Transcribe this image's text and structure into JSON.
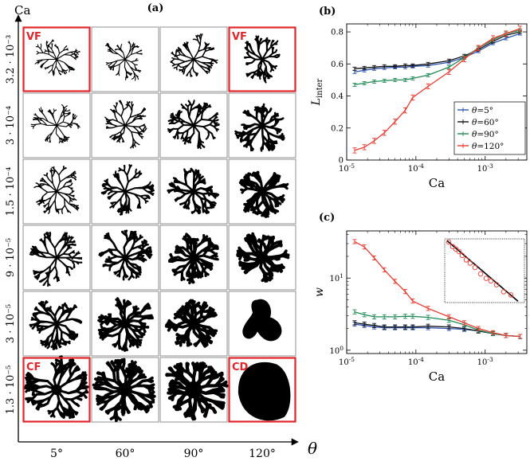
{
  "panel_labels": {
    "a": "(a)",
    "b": "(b)",
    "c": "(c)"
  },
  "grid": {
    "y_axis_label": "Ca",
    "x_axis_label": "θ",
    "rows": [
      "3.2 · 10⁻³",
      "3 · 10⁻⁴",
      "1.5 · 10⁻⁴",
      "9 · 10⁻⁵",
      "3 · 10⁻⁵",
      "1.3 · 10⁻⁵"
    ],
    "cols": [
      "5°",
      "60°",
      "90°",
      "120°"
    ],
    "highlights": [
      {
        "label": "VF",
        "row": 0,
        "col": 0
      },
      {
        "label": "VF",
        "row": 0,
        "col": 3
      },
      {
        "label": "CF",
        "row": 5,
        "col": 0
      },
      {
        "label": "CD",
        "row": 5,
        "col": 3
      }
    ],
    "pattern_color": "#000000",
    "highlight_color": "#e0262b"
  },
  "chart_data": [
    {
      "type": "line",
      "panel": "(b)",
      "xlabel": "Ca",
      "ylabel": "L",
      "ylabel_sub": "inter",
      "xscale": "log",
      "xlim": [
        1e-05,
        0.004
      ],
      "ylim": [
        0,
        0.85
      ],
      "xticks": [
        {
          "v": 1e-05,
          "base": "10",
          "exp": "-5"
        },
        {
          "v": 0.0001,
          "base": "10",
          "exp": "-4"
        },
        {
          "v": 0.001,
          "base": "10",
          "exp": "-3"
        }
      ],
      "yticks": [
        {
          "v": 0,
          "label": "0"
        },
        {
          "v": 0.2,
          "label": "0.2"
        },
        {
          "v": 0.4,
          "label": "0.4"
        },
        {
          "v": 0.6,
          "label": "0.6"
        },
        {
          "v": 0.8,
          "label": "0.8"
        }
      ],
      "legend_position": "inside-right",
      "x": [
        1.3e-05,
        1.8e-05,
        2.5e-05,
        3.5e-05,
        5e-05,
        7e-05,
        9e-05,
        0.00015,
        0.0003,
        0.0005,
        0.0008,
        0.0013,
        0.002,
        0.0032
      ],
      "series": [
        {
          "name": "θ=5°",
          "color": "#2d56b5",
          "values": [
            0.55,
            0.56,
            0.57,
            0.575,
            0.58,
            0.58,
            0.585,
            0.59,
            0.61,
            0.64,
            0.68,
            0.73,
            0.76,
            0.79
          ]
        },
        {
          "name": "θ=60°",
          "color": "#111111",
          "values": [
            0.57,
            0.575,
            0.58,
            0.585,
            0.585,
            0.59,
            0.59,
            0.6,
            0.62,
            0.65,
            0.69,
            0.74,
            0.78,
            0.8
          ]
        },
        {
          "name": "θ=90°",
          "color": "#1f8a55",
          "values": [
            0.47,
            0.48,
            0.49,
            0.495,
            0.5,
            0.5,
            0.51,
            0.53,
            0.58,
            0.64,
            0.7,
            0.75,
            0.79,
            0.81
          ]
        },
        {
          "name": "θ=120°",
          "color": "#ec3b2f",
          "values": [
            0.06,
            0.08,
            0.12,
            0.17,
            0.24,
            0.31,
            0.39,
            0.46,
            0.55,
            0.63,
            0.7,
            0.76,
            0.79,
            0.82
          ]
        }
      ]
    },
    {
      "type": "line",
      "panel": "(c)",
      "xlabel": "Ca",
      "ylabel": "w",
      "xscale": "log",
      "yscale": "log",
      "xlim": [
        1e-05,
        0.004
      ],
      "ylim": [
        0.9,
        45
      ],
      "xticks": [
        {
          "v": 1e-05,
          "base": "10",
          "exp": "-5"
        },
        {
          "v": 0.0001,
          "base": "10",
          "exp": "-4"
        },
        {
          "v": 0.001,
          "base": "10",
          "exp": "-3"
        }
      ],
      "yticks": [
        {
          "v": 1,
          "base": "10",
          "exp": "0"
        },
        {
          "v": 10,
          "base": "10",
          "exp": "1"
        }
      ],
      "x": [
        1.3e-05,
        1.8e-05,
        2.5e-05,
        3.5e-05,
        5e-05,
        7e-05,
        9e-05,
        0.00015,
        0.0003,
        0.0005,
        0.0008,
        0.0013,
        0.002,
        0.0032
      ],
      "series": [
        {
          "name": "θ=5°",
          "color": "#2d56b5",
          "values": [
            2.3,
            2.2,
            2.1,
            2.05,
            2.05,
            2.05,
            2.05,
            2.05,
            2.0,
            1.95,
            1.85,
            1.7,
            1.6,
            1.55
          ]
        },
        {
          "name": "θ=60°",
          "color": "#111111",
          "values": [
            2.4,
            2.3,
            2.2,
            2.1,
            2.1,
            2.1,
            2.1,
            2.15,
            2.1,
            2.0,
            1.85,
            1.7,
            1.6,
            1.55
          ]
        },
        {
          "name": "θ=90°",
          "color": "#1f8a55",
          "values": [
            3.4,
            3.1,
            2.9,
            2.9,
            2.9,
            2.95,
            2.95,
            2.85,
            2.6,
            2.25,
            1.9,
            1.7,
            1.6,
            1.55
          ]
        },
        {
          "name": "θ=120°",
          "color": "#ec3b2f",
          "values": [
            32,
            27,
            19,
            13,
            9.0,
            6.5,
            4.8,
            3.8,
            2.9,
            2.4,
            2.0,
            1.75,
            1.6,
            1.55
          ]
        }
      ],
      "inset": {
        "markers": [
          [
            0.05,
            0.05
          ],
          [
            0.1,
            0.12
          ],
          [
            0.14,
            0.16
          ],
          [
            0.18,
            0.2
          ],
          [
            0.22,
            0.26
          ],
          [
            0.27,
            0.33
          ],
          [
            0.32,
            0.38
          ],
          [
            0.38,
            0.45
          ],
          [
            0.45,
            0.55
          ],
          [
            0.52,
            0.62
          ],
          [
            0.58,
            0.66
          ],
          [
            0.65,
            0.72
          ],
          [
            0.74,
            0.83
          ],
          [
            0.83,
            0.88
          ]
        ],
        "fit": [
          [
            0.03,
            0.03
          ],
          [
            0.92,
            0.98
          ]
        ],
        "marker_color": "#ec3b2f",
        "fit_color": "#000000"
      }
    }
  ]
}
